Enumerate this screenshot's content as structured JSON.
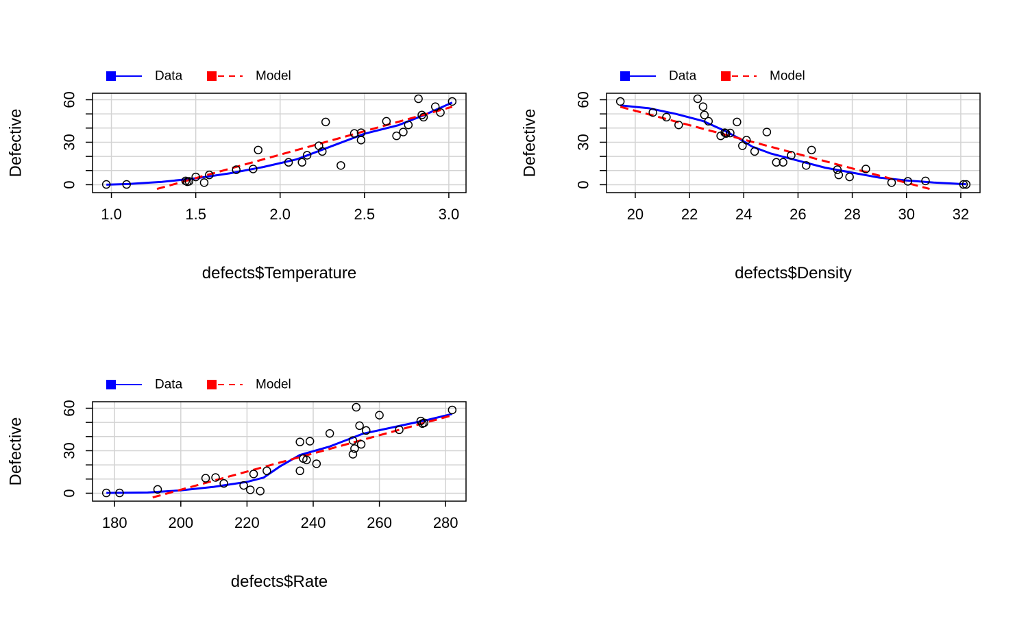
{
  "chart_data": [
    {
      "type": "scatter",
      "xlabel": "defects$Temperature",
      "ylabel": "Defective",
      "xlim": [
        0.97,
        3.02
      ],
      "ylim": [
        -3,
        62
      ],
      "xticks": [
        "1.0",
        "1.5",
        "2.0",
        "2.5",
        "3.0"
      ],
      "yticks": [
        "0",
        "30",
        "60"
      ],
      "legend": {
        "placement": "top-left",
        "entries": [
          "Data",
          "Model"
        ]
      },
      "grid": true,
      "points": [
        [
          0.97,
          0.2
        ],
        [
          1.09,
          0.2
        ],
        [
          1.44,
          2.7
        ],
        [
          1.45,
          2.1
        ],
        [
          1.46,
          2.4
        ],
        [
          1.5,
          5.5
        ],
        [
          1.55,
          1.5
        ],
        [
          1.58,
          6.9
        ],
        [
          1.74,
          10.6
        ],
        [
          1.84,
          11.1
        ],
        [
          1.87,
          24.5
        ],
        [
          2.05,
          15.8
        ],
        [
          2.13,
          15.8
        ],
        [
          2.16,
          20.8
        ],
        [
          2.23,
          27.5
        ],
        [
          2.25,
          23.5
        ],
        [
          2.27,
          44.3
        ],
        [
          2.36,
          13.6
        ],
        [
          2.44,
          36.2
        ],
        [
          2.48,
          36.7
        ],
        [
          2.48,
          31.5
        ],
        [
          2.63,
          44.8
        ],
        [
          2.69,
          34.5
        ],
        [
          2.73,
          37.2
        ],
        [
          2.76,
          42.2
        ],
        [
          2.82,
          60.7
        ],
        [
          2.84,
          49.2
        ],
        [
          2.85,
          47.7
        ],
        [
          2.92,
          55.1
        ],
        [
          2.95,
          51.0
        ],
        [
          3.02,
          58.8
        ]
      ],
      "series": [
        {
          "name": "Data",
          "color": "#0000ff",
          "style": "solid",
          "x": [
            0.97,
            1.1,
            1.3,
            1.5,
            1.7,
            1.9,
            2.1,
            2.3,
            2.5,
            2.7,
            2.85,
            3.02
          ],
          "y": [
            0,
            0.5,
            2,
            4.5,
            8,
            12.5,
            18,
            27,
            36,
            42,
            49,
            58
          ]
        },
        {
          "name": "Model",
          "color": "#ff0000",
          "style": "dashed",
          "x": [
            1.27,
            3.02
          ],
          "y": [
            -3,
            55
          ]
        }
      ]
    },
    {
      "type": "scatter",
      "xlabel": "defects$Density",
      "ylabel": "Defective",
      "xlim": [
        19.45,
        32.2
      ],
      "ylim": [
        -3,
        62
      ],
      "xticks": [
        "20",
        "22",
        "24",
        "26",
        "28",
        "30",
        "32"
      ],
      "yticks": [
        "0",
        "30",
        "60"
      ],
      "legend": {
        "placement": "top-left",
        "entries": [
          "Data",
          "Model"
        ]
      },
      "grid": true,
      "points": [
        [
          19.45,
          58.8
        ],
        [
          20.65,
          51.0
        ],
        [
          21.15,
          47.7
        ],
        [
          21.6,
          42.2
        ],
        [
          22.3,
          60.7
        ],
        [
          22.5,
          55.1
        ],
        [
          22.55,
          49.2
        ],
        [
          22.7,
          44.8
        ],
        [
          23.15,
          34.5
        ],
        [
          23.3,
          36.7
        ],
        [
          23.35,
          36.2
        ],
        [
          23.5,
          36.5
        ],
        [
          23.75,
          44.3
        ],
        [
          23.95,
          27.5
        ],
        [
          24.1,
          31.5
        ],
        [
          24.4,
          23.5
        ],
        [
          24.85,
          37.2
        ],
        [
          25.2,
          15.8
        ],
        [
          25.45,
          15.8
        ],
        [
          25.75,
          20.8
        ],
        [
          26.3,
          13.6
        ],
        [
          26.5,
          24.5
        ],
        [
          27.45,
          10.6
        ],
        [
          27.5,
          6.9
        ],
        [
          27.9,
          5.5
        ],
        [
          28.5,
          11.1
        ],
        [
          29.45,
          1.5
        ],
        [
          30.05,
          2.4
        ],
        [
          30.7,
          2.7
        ],
        [
          32.1,
          0.2
        ],
        [
          32.2,
          0.2
        ]
      ],
      "series": [
        {
          "name": "Data",
          "color": "#0000ff",
          "style": "solid",
          "x": [
            19.45,
            20.5,
            21.5,
            22.5,
            23.3,
            23.8,
            24.3,
            25,
            26,
            27,
            28,
            29,
            30,
            31,
            32.2
          ],
          "y": [
            56,
            54,
            50,
            45,
            38,
            33,
            27,
            22,
            17,
            12,
            8.5,
            5,
            3,
            1.5,
            0.3
          ]
        },
        {
          "name": "Model",
          "color": "#ff0000",
          "style": "dashed",
          "x": [
            19.45,
            30.85
          ],
          "y": [
            55,
            -3
          ]
        }
      ]
    },
    {
      "type": "scatter",
      "xlabel": "defects$Rate",
      "ylabel": "Defective",
      "xlim": [
        177.5,
        282
      ],
      "ylim": [
        -3,
        62
      ],
      "xticks": [
        "180",
        "200",
        "220",
        "240",
        "260",
        "280"
      ],
      "yticks": [
        "0",
        "30",
        "60"
      ],
      "legend": {
        "placement": "top-left",
        "entries": [
          "Data",
          "Model"
        ]
      },
      "grid": true,
      "points": [
        [
          177.5,
          0.2
        ],
        [
          181.5,
          0.2
        ],
        [
          193,
          2.7
        ],
        [
          207.5,
          10.6
        ],
        [
          210.5,
          11.1
        ],
        [
          213,
          6.9
        ],
        [
          219,
          5.5
        ],
        [
          221,
          2.4
        ],
        [
          222,
          13.6
        ],
        [
          224,
          1.5
        ],
        [
          226,
          15.8
        ],
        [
          236,
          15.8
        ],
        [
          236,
          36.2
        ],
        [
          237,
          24.5
        ],
        [
          238,
          23.5
        ],
        [
          239,
          36.7
        ],
        [
          241,
          20.8
        ],
        [
          245,
          42.2
        ],
        [
          252,
          27.5
        ],
        [
          252,
          37.2
        ],
        [
          252.5,
          31.5
        ],
        [
          253,
          60.7
        ],
        [
          254,
          47.7
        ],
        [
          254.5,
          34.5
        ],
        [
          256,
          44.3
        ],
        [
          260,
          55.1
        ],
        [
          266,
          44.8
        ],
        [
          272.5,
          51.0
        ],
        [
          273,
          49.2
        ],
        [
          273.5,
          49.7
        ],
        [
          282,
          58.8
        ]
      ],
      "series": [
        {
          "name": "Data",
          "color": "#0000ff",
          "style": "solid",
          "x": [
            177.5,
            190,
            200,
            210,
            220,
            225,
            230,
            236,
            245,
            255,
            265,
            275,
            282
          ],
          "y": [
            0.2,
            0.5,
            2,
            4.5,
            8,
            11,
            19,
            27,
            33,
            42,
            47,
            52,
            56
          ]
        },
        {
          "name": "Model",
          "color": "#ff0000",
          "style": "dashed",
          "x": [
            191.5,
            282
          ],
          "y": [
            -3,
            55
          ]
        }
      ]
    }
  ]
}
